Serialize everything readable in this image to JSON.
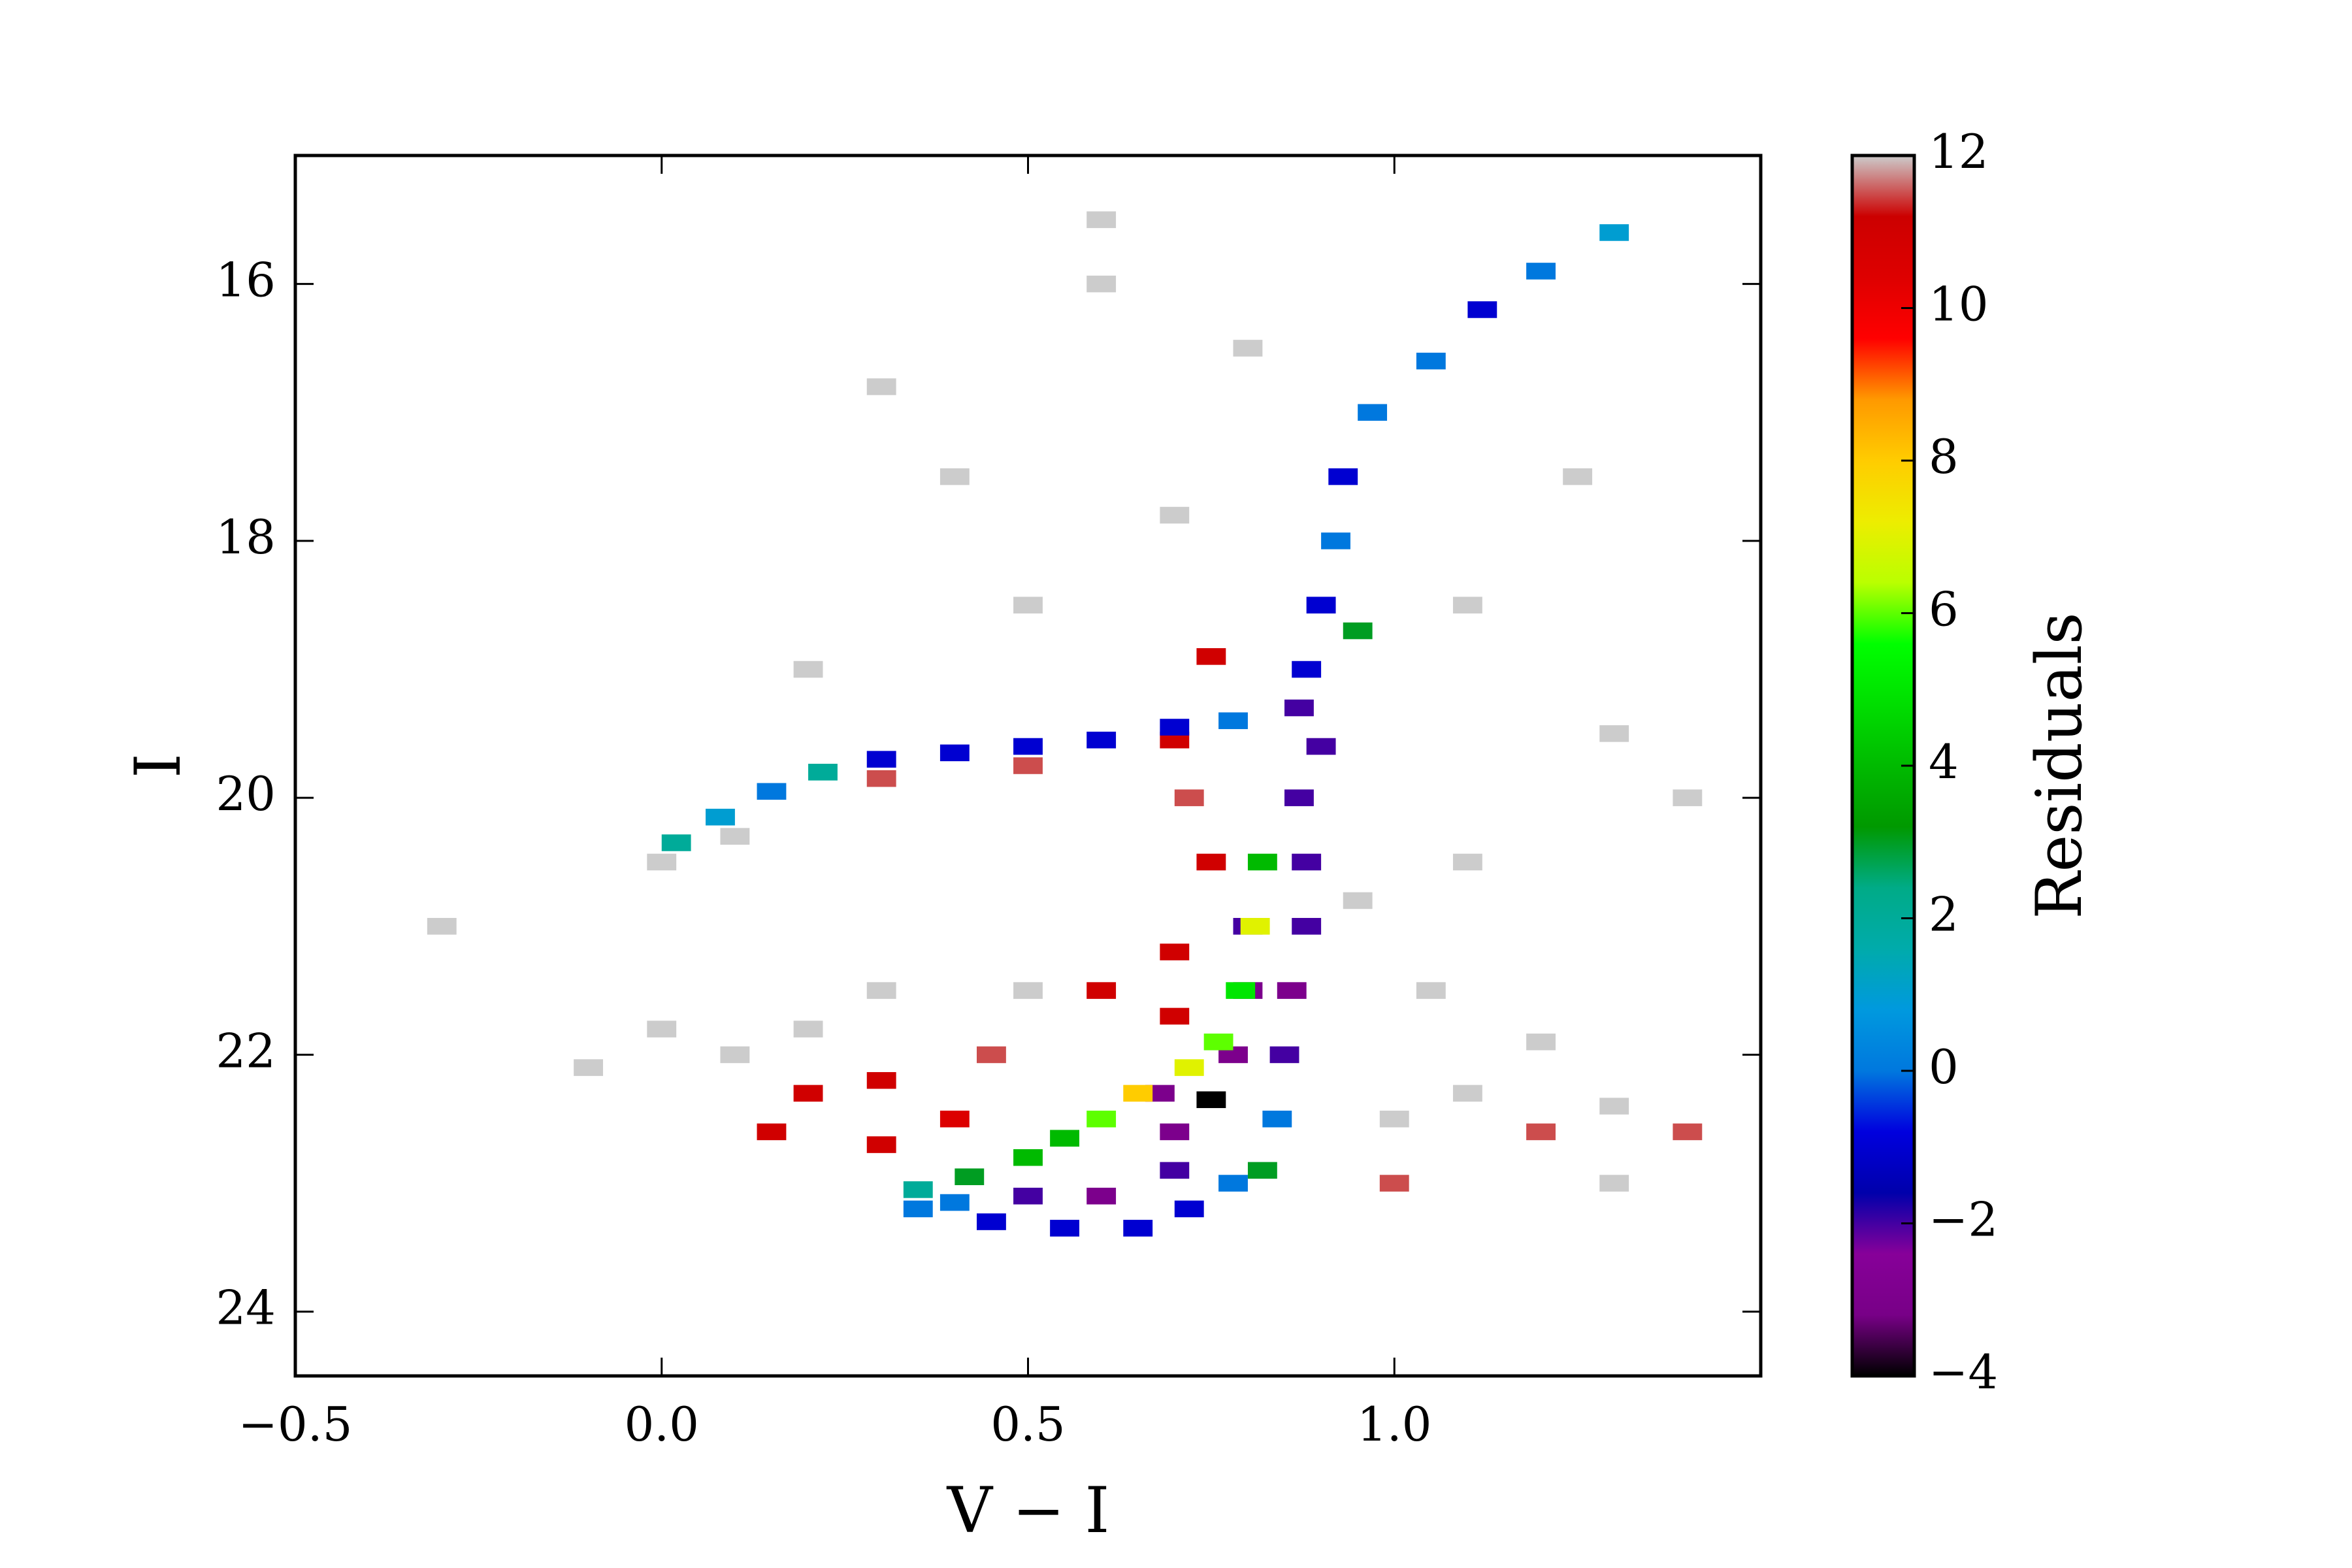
{
  "chart_data": {
    "type": "heatmap",
    "xlabel": "V − I",
    "ylabel": "I",
    "colorbar_label": "Residuals",
    "colormap": "nipy_spectral",
    "xlim": [
      -0.5,
      1.5
    ],
    "ylim": [
      24.5,
      15
    ],
    "xticks": [
      {
        "value": -0.5,
        "label": "−0.5"
      },
      {
        "value": 0,
        "label": "0.0"
      },
      {
        "value": 0.5,
        "label": "0.5"
      },
      {
        "value": 1,
        "label": "1.0"
      }
    ],
    "yticks": [
      16,
      18,
      20,
      22,
      24
    ],
    "clim": [
      -4,
      12
    ],
    "cticks": [
      {
        "value": -4,
        "label": "−4"
      },
      {
        "value": -2,
        "label": "−2"
      },
      0,
      2,
      4,
      6,
      8,
      10,
      12
    ],
    "x": [
      0.0,
      0.1,
      0.3,
      0.5,
      0.7,
      0.02,
      0.08,
      0.15,
      0.22,
      0.3,
      0.4,
      0.5,
      0.6,
      0.7,
      0.78,
      0.88,
      0.9,
      0.92,
      0.93,
      0.97,
      1.05,
      1.12,
      1.2,
      1.3,
      0.95,
      0.87,
      0.9,
      0.87,
      0.88,
      0.88,
      0.86,
      0.85,
      0.84,
      0.82,
      0.8,
      0.8,
      0.78,
      0.75,
      0.7,
      0.68,
      0.82,
      0.81,
      0.79,
      0.76,
      0.72,
      0.65,
      0.6,
      0.55,
      0.5,
      0.42,
      0.35,
      0.35,
      0.45,
      0.55,
      0.6,
      0.65,
      0.72,
      0.78,
      0.5,
      0.4,
      0.7,
      0.1,
      0.2,
      0.3,
      0.2,
      0.0,
      0.4,
      0.45,
      0.6,
      0.7,
      0.75,
      0.72,
      0.7,
      0.5,
      0.3,
      0.15,
      0.3,
      -0.1,
      1.0,
      1.1,
      1.2,
      1.3,
      1.4,
      1.05,
      1.2,
      1.0,
      1.3,
      0.95,
      1.1,
      0.6,
      0.8,
      0.4,
      0.7,
      1.1,
      1.3,
      0.2,
      0.5,
      0.75,
      0.6,
      1.4,
      -0.3,
      1.25,
      0.3
    ],
    "y": [
      20.5,
      20.3,
      19.85,
      19.75,
      19.55,
      20.35,
      20.15,
      19.95,
      19.8,
      19.7,
      19.65,
      19.6,
      19.55,
      19.45,
      19.4,
      19.0,
      18.5,
      18.0,
      17.5,
      17.0,
      16.6,
      16.2,
      15.9,
      15.6,
      18.7,
      19.3,
      19.6,
      20.0,
      20.5,
      21.0,
      21.5,
      22.0,
      22.5,
      22.9,
      21.0,
      21.5,
      22.0,
      22.35,
      22.6,
      22.3,
      20.5,
      21.0,
      21.5,
      21.9,
      22.1,
      22.3,
      22.5,
      22.65,
      22.8,
      22.95,
      23.05,
      23.2,
      23.3,
      23.35,
      23.1,
      23.35,
      23.2,
      23.0,
      23.1,
      23.15,
      22.9,
      22.0,
      22.3,
      22.2,
      21.8,
      21.8,
      22.5,
      22.0,
      21.5,
      21.2,
      20.5,
      20.0,
      21.7,
      21.5,
      21.5,
      22.6,
      22.7,
      22.1,
      22.5,
      22.3,
      22.6,
      22.4,
      22.6,
      21.5,
      21.9,
      23.0,
      23.0,
      20.8,
      20.5,
      16.0,
      16.5,
      17.5,
      17.8,
      18.5,
      19.5,
      19.0,
      18.5,
      18.9,
      15.5,
      20.0,
      21.0,
      17.5,
      16.8
    ],
    "values": [
      12,
      12,
      11.5,
      11.5,
      11,
      2,
      1,
      0,
      2,
      -1,
      -1,
      -1,
      -1,
      -1,
      0,
      -1,
      -1,
      0,
      -1,
      0,
      0,
      -1,
      0,
      1,
      3,
      -2,
      -2,
      -2,
      -2,
      -2,
      -3,
      -2,
      0,
      3,
      -2,
      -3,
      -3,
      -4,
      -3,
      -3,
      4,
      7,
      5,
      6,
      7,
      8,
      6,
      4,
      4,
      3,
      2,
      0,
      -1,
      -1,
      -3,
      -1,
      -1,
      0,
      -2,
      0,
      -2,
      12,
      11,
      11,
      12,
      12,
      10.5,
      11.5,
      11,
      11,
      11,
      11.5,
      11,
      12,
      12,
      11,
      11,
      12,
      12,
      12,
      11.5,
      12,
      11.5,
      12,
      12,
      11.5,
      12,
      12,
      12,
      12,
      12,
      12,
      12,
      12,
      12,
      12,
      12,
      11,
      12,
      12,
      12,
      12,
      12
    ]
  }
}
